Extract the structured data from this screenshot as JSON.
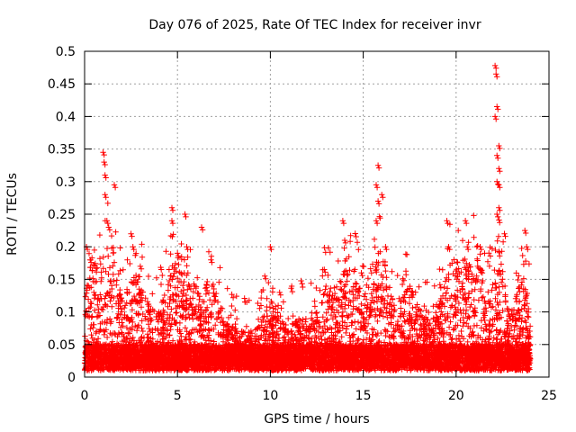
{
  "chart_data": {
    "type": "scatter",
    "title": "Day 076 of 2025, Rate Of TEC Index for receiver invr",
    "xlabel": "GPS time / hours",
    "ylabel": "ROTI / TECUs",
    "xlim": [
      0,
      25
    ],
    "ylim": [
      0,
      0.5
    ],
    "xticks": [
      0,
      5,
      10,
      15,
      20,
      25
    ],
    "xtick_labels": [
      "0",
      "5",
      "10",
      "15",
      "20",
      "25"
    ],
    "yticks": [
      0,
      0.05,
      0.1,
      0.15,
      0.2,
      0.25,
      0.3,
      0.35,
      0.4,
      0.45,
      0.5
    ],
    "ytick_labels": [
      "0",
      "0.05",
      "0.1",
      "0.15",
      "0.2",
      "0.25",
      "0.3",
      "0.35",
      "0.4",
      "0.45",
      "0.5"
    ],
    "grid": true,
    "marker": "+",
    "series": [
      {
        "name": "ROTI",
        "color": "#ff0000",
        "x_range": [
          0,
          24
        ],
        "baseline": 0.03,
        "description_points": [
          {
            "x": 0.1,
            "y": 0.2
          },
          {
            "x": 0.3,
            "y": 0.18
          },
          {
            "x": 0.5,
            "y": 0.13
          },
          {
            "x": 1.0,
            "y": 0.345
          },
          {
            "x": 1.05,
            "y": 0.33
          },
          {
            "x": 1.1,
            "y": 0.31
          },
          {
            "x": 1.1,
            "y": 0.28
          },
          {
            "x": 1.2,
            "y": 0.24
          },
          {
            "x": 1.3,
            "y": 0.23
          },
          {
            "x": 1.6,
            "y": 0.295
          },
          {
            "x": 2.5,
            "y": 0.22
          },
          {
            "x": 2.6,
            "y": 0.2
          },
          {
            "x": 3.0,
            "y": 0.17
          },
          {
            "x": 4.7,
            "y": 0.26
          },
          {
            "x": 4.7,
            "y": 0.24
          },
          {
            "x": 5.0,
            "y": 0.19
          },
          {
            "x": 5.4,
            "y": 0.25
          },
          {
            "x": 5.5,
            "y": 0.2
          },
          {
            "x": 6.3,
            "y": 0.23
          },
          {
            "x": 6.8,
            "y": 0.18
          },
          {
            "x": 9.7,
            "y": 0.155
          },
          {
            "x": 10.0,
            "y": 0.2
          },
          {
            "x": 10.5,
            "y": 0.13
          },
          {
            "x": 12.9,
            "y": 0.165
          },
          {
            "x": 13.9,
            "y": 0.24
          },
          {
            "x": 14.0,
            "y": 0.21
          },
          {
            "x": 14.9,
            "y": 0.16
          },
          {
            "x": 15.8,
            "y": 0.325
          },
          {
            "x": 15.7,
            "y": 0.295
          },
          {
            "x": 15.8,
            "y": 0.27
          },
          {
            "x": 16.0,
            "y": 0.28
          },
          {
            "x": 15.7,
            "y": 0.24
          },
          {
            "x": 16.2,
            "y": 0.2
          },
          {
            "x": 19.5,
            "y": 0.24
          },
          {
            "x": 19.6,
            "y": 0.2
          },
          {
            "x": 20.5,
            "y": 0.24
          },
          {
            "x": 20.6,
            "y": 0.2
          },
          {
            "x": 21.3,
            "y": 0.2
          },
          {
            "x": 22.1,
            "y": 0.478
          },
          {
            "x": 22.15,
            "y": 0.465
          },
          {
            "x": 22.2,
            "y": 0.415
          },
          {
            "x": 22.1,
            "y": 0.4
          },
          {
            "x": 22.3,
            "y": 0.355
          },
          {
            "x": 22.2,
            "y": 0.34
          },
          {
            "x": 22.3,
            "y": 0.32
          },
          {
            "x": 22.2,
            "y": 0.3
          },
          {
            "x": 22.3,
            "y": 0.295
          },
          {
            "x": 22.3,
            "y": 0.26
          },
          {
            "x": 22.2,
            "y": 0.25
          },
          {
            "x": 22.6,
            "y": 0.22
          },
          {
            "x": 23.7,
            "y": 0.225
          },
          {
            "x": 23.8,
            "y": 0.2
          }
        ]
      }
    ]
  }
}
